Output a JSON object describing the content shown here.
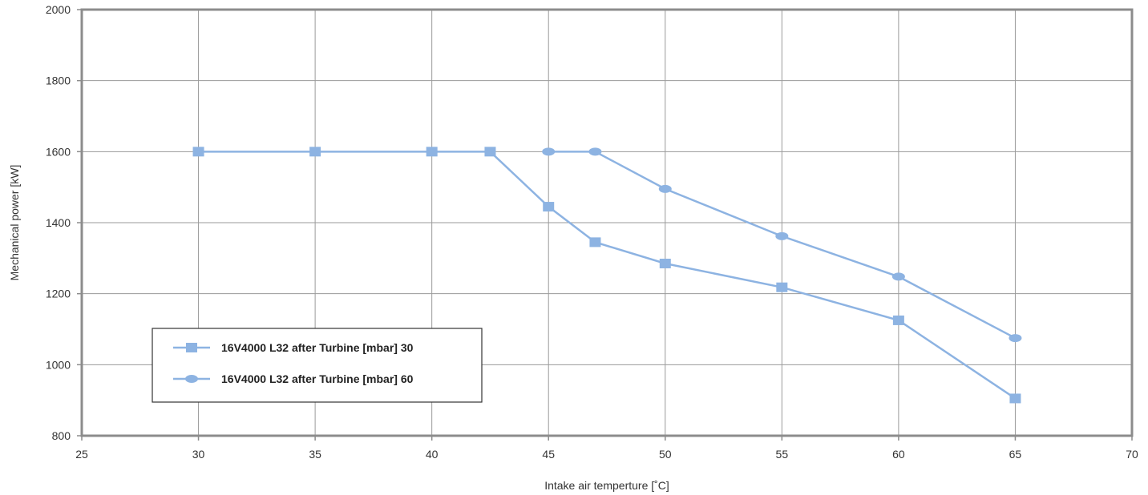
{
  "chart_data": {
    "type": "line",
    "xlabel": "Intake air temperture [˚C]",
    "ylabel": "Mechanical power [kW]",
    "xlim": [
      25,
      70
    ],
    "ylim": [
      800,
      2000
    ],
    "x_ticks": [
      "25",
      "30",
      "35",
      "40",
      "45",
      "50",
      "55",
      "60",
      "65",
      "70"
    ],
    "y_ticks": [
      "800",
      "1000",
      "1200",
      "1400",
      "1600",
      "1800",
      "2000"
    ],
    "grid": true,
    "legend_position": "bottom-left",
    "series": [
      {
        "name": "16V4000 L32 after Turbine [mbar] 30",
        "marker": "square",
        "color": "#8db3e2",
        "points": [
          {
            "x": 30,
            "y": 1600
          },
          {
            "x": 35,
            "y": 1600
          },
          {
            "x": 40,
            "y": 1600
          },
          {
            "x": 42.5,
            "y": 1600
          },
          {
            "x": 45,
            "y": 1445
          },
          {
            "x": 47,
            "y": 1345
          },
          {
            "x": 50,
            "y": 1285
          },
          {
            "x": 55,
            "y": 1218
          },
          {
            "x": 60,
            "y": 1125
          },
          {
            "x": 65,
            "y": 905
          }
        ]
      },
      {
        "name": "16V4000 L32 after Turbine [mbar] 60",
        "marker": "circle",
        "color": "#8db3e2",
        "points": [
          {
            "x": 45,
            "y": 1600
          },
          {
            "x": 47,
            "y": 1600
          },
          {
            "x": 50,
            "y": 1495
          },
          {
            "x": 55,
            "y": 1362
          },
          {
            "x": 60,
            "y": 1248
          },
          {
            "x": 65,
            "y": 1075
          }
        ]
      }
    ]
  }
}
